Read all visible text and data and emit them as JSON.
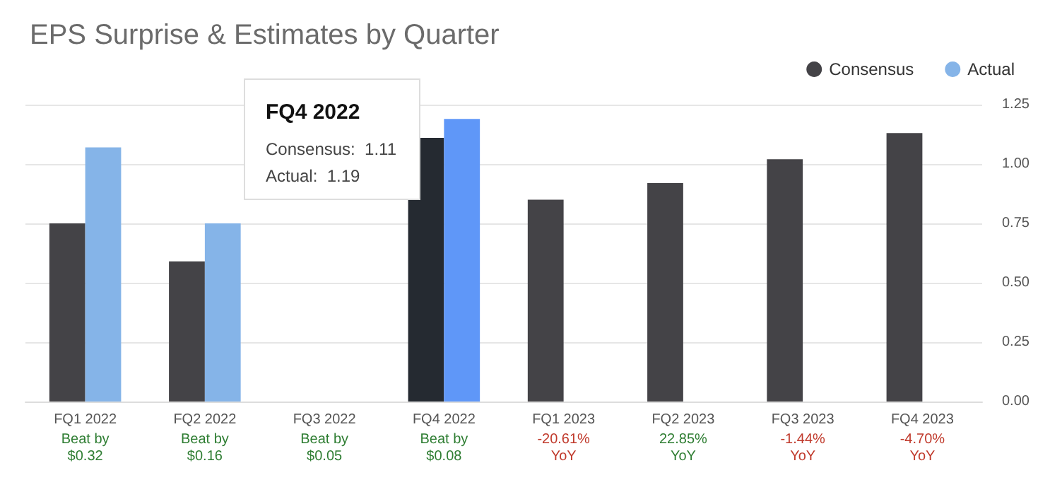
{
  "chart_data": {
    "type": "bar",
    "title": "EPS Surprise & Estimates by Quarter",
    "categories": [
      "FQ1 2022",
      "FQ2 2022",
      "FQ3 2022",
      "FQ4 2022",
      "FQ1 2023",
      "FQ2 2023",
      "FQ3 2023",
      "FQ4 2023"
    ],
    "series": [
      {
        "name": "Consensus",
        "color": "#444347",
        "colors": [
          "#444347",
          "#444347",
          "#444347",
          "#252a31",
          "#444347",
          "#444347",
          "#444347",
          "#444347"
        ],
        "values": [
          0.75,
          0.59,
          null,
          1.11,
          0.85,
          0.92,
          1.02,
          1.13
        ]
      },
      {
        "name": "Actual",
        "color": "#85b4e8",
        "colors": [
          "#85b4e8",
          "#85b4e8",
          "#85b4e8",
          "#5f97f8",
          "#85b4e8",
          "#85b4e8",
          "#85b4e8",
          "#85b4e8"
        ],
        "values": [
          1.07,
          0.75,
          null,
          1.19,
          null,
          null,
          null,
          null
        ]
      }
    ],
    "ylim": [
      0,
      1.25
    ],
    "yticks": [
      {
        "value": 0,
        "label": "0.00"
      },
      {
        "value": 0.25,
        "label": "0.25"
      },
      {
        "value": 0.5,
        "label": "0.50"
      },
      {
        "value": 0.75,
        "label": "0.75"
      },
      {
        "value": 1,
        "label": "1.00"
      },
      {
        "value": 1.25,
        "label": "1.25"
      }
    ],
    "grid": "y",
    "legend": "top right",
    "annotations": [
      "FQ4 2022\nConsensus:  1.11\nActual:  1.19",
      "Beat by $0.32",
      "Beat by $0.16",
      "Beat by $0.05",
      "Beat by $0.08",
      "-20.61% YoY",
      "22.85% YoY",
      "-1.44% YoY",
      "-4.70% YoY"
    ]
  }
}
